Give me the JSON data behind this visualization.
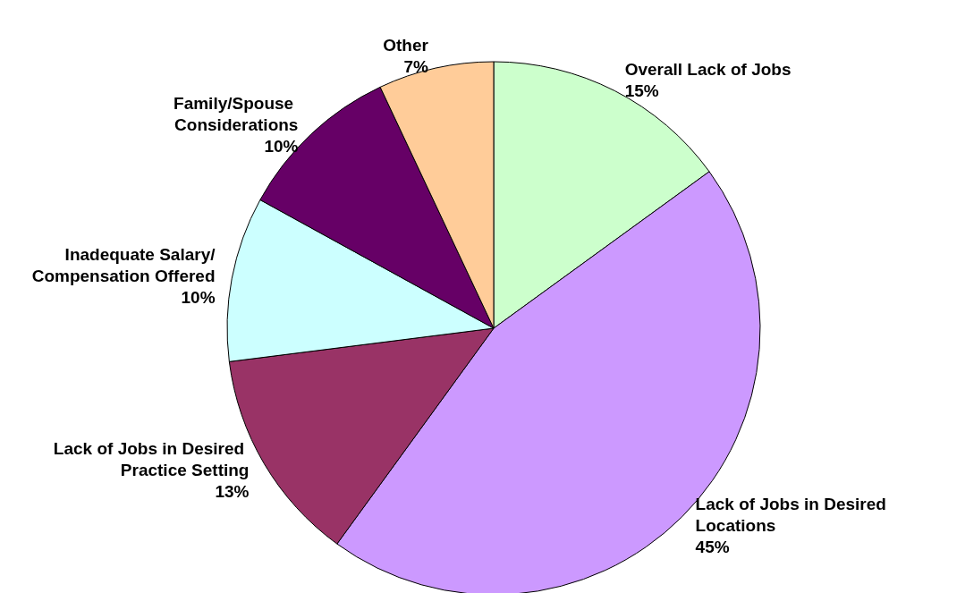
{
  "chart_data": {
    "type": "pie",
    "categories": [
      "Overall Lack of Jobs",
      "Lack of Jobs in Desired Locations",
      "Lack of Jobs in Desired Practice Setting",
      "Inadequate Salary/Compensation Offered",
      "Family/Spouse Considerations",
      "Other"
    ],
    "values": [
      15,
      45,
      13,
      10,
      10,
      7
    ],
    "colors": [
      "#ccffcc",
      "#cc99ff",
      "#993366",
      "#ccffff",
      "#660066",
      "#ffcc99"
    ],
    "value_labels": [
      "15%",
      "45%",
      "13%",
      "10%",
      "10%",
      "7%"
    ],
    "legend": false
  }
}
